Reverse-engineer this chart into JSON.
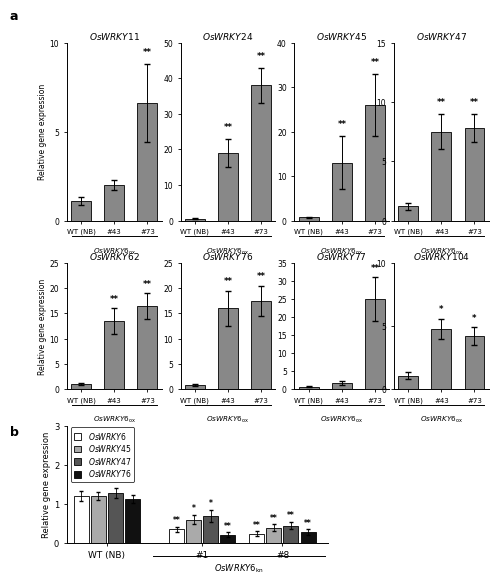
{
  "panel_a": {
    "subplots": [
      {
        "title": "OsWRKY11",
        "categories": [
          "WT (NB)",
          "#43",
          "#73"
        ],
        "values": [
          1.1,
          2.0,
          6.6
        ],
        "errors": [
          0.25,
          0.3,
          2.2
        ],
        "ylim": [
          0,
          10
        ],
        "yticks": [
          0,
          5,
          10
        ],
        "sig": [
          "",
          "",
          "**"
        ]
      },
      {
        "title": "OsWRKY24",
        "categories": [
          "WT (NB)",
          "#43",
          "#73"
        ],
        "values": [
          0.5,
          19.0,
          38.0
        ],
        "errors": [
          0.1,
          4.0,
          5.0
        ],
        "ylim": [
          0,
          50
        ],
        "yticks": [
          0,
          10,
          20,
          30,
          40,
          50
        ],
        "sig": [
          "",
          "**",
          "**"
        ]
      },
      {
        "title": "OsWRKY45",
        "categories": [
          "WT (NB)",
          "#43",
          "#73"
        ],
        "values": [
          0.7,
          13.0,
          26.0
        ],
        "errors": [
          0.1,
          6.0,
          7.0
        ],
        "ylim": [
          0,
          40
        ],
        "yticks": [
          0,
          10,
          20,
          30,
          40
        ],
        "sig": [
          "",
          "**",
          "**"
        ]
      },
      {
        "title": "OsWRKY47",
        "categories": [
          "WT (NB)",
          "#43",
          "#73"
        ],
        "values": [
          1.2,
          7.5,
          7.8
        ],
        "errors": [
          0.3,
          1.5,
          1.2
        ],
        "ylim": [
          0,
          15
        ],
        "yticks": [
          0,
          5,
          10,
          15
        ],
        "sig": [
          "",
          "**",
          "**"
        ]
      },
      {
        "title": "OsWRKY62",
        "categories": [
          "WT (NB)",
          "#43",
          "#73"
        ],
        "values": [
          1.1,
          13.5,
          16.5
        ],
        "errors": [
          0.2,
          2.5,
          2.5
        ],
        "ylim": [
          0,
          25
        ],
        "yticks": [
          0,
          5,
          10,
          15,
          20,
          25
        ],
        "sig": [
          "",
          "**",
          "**"
        ]
      },
      {
        "title": "OsWRKY76",
        "categories": [
          "WT (NB)",
          "#43",
          "#73"
        ],
        "values": [
          0.9,
          16.0,
          17.5
        ],
        "errors": [
          0.15,
          3.5,
          3.0
        ],
        "ylim": [
          0,
          25
        ],
        "yticks": [
          0,
          5,
          10,
          15,
          20,
          25
        ],
        "sig": [
          "",
          "**",
          "**"
        ]
      },
      {
        "title": "OsWRKY77",
        "categories": [
          "WT (NB)",
          "#43",
          "#73"
        ],
        "values": [
          0.8,
          1.8,
          25.0
        ],
        "errors": [
          0.1,
          0.5,
          6.0
        ],
        "ylim": [
          0,
          35
        ],
        "yticks": [
          0,
          5,
          10,
          15,
          20,
          25,
          30,
          35
        ],
        "sig": [
          "",
          "",
          "**"
        ]
      },
      {
        "title": "OsWRKY104",
        "categories": [
          "WT (NB)",
          "#43",
          "#73"
        ],
        "values": [
          1.1,
          4.8,
          4.2
        ],
        "errors": [
          0.25,
          0.8,
          0.7
        ],
        "ylim": [
          0,
          10
        ],
        "yticks": [
          0,
          5,
          10
        ],
        "sig": [
          "",
          "*",
          "*"
        ]
      }
    ]
  },
  "panel_b": {
    "groups": [
      "WT (NB)",
      "#1",
      "#8"
    ],
    "series": [
      {
        "label": "OsWRKY6",
        "color": "#ffffff",
        "edgecolor": "#000000",
        "values": [
          1.2,
          0.35,
          0.24
        ],
        "errors": [
          0.12,
          0.07,
          0.06
        ],
        "sig": [
          "",
          "**",
          "**"
        ]
      },
      {
        "label": "OsWRKY45",
        "color": "#aaaaaa",
        "edgecolor": "#000000",
        "values": [
          1.2,
          0.6,
          0.4
        ],
        "errors": [
          0.1,
          0.12,
          0.08
        ],
        "sig": [
          "",
          "*",
          "**"
        ]
      },
      {
        "label": "OsWRKY47",
        "color": "#555555",
        "edgecolor": "#000000",
        "values": [
          1.28,
          0.7,
          0.45
        ],
        "errors": [
          0.12,
          0.15,
          0.1
        ],
        "sig": [
          "",
          "*",
          "**"
        ]
      },
      {
        "label": "OsWRKY76",
        "color": "#111111",
        "edgecolor": "#000000",
        "values": [
          1.12,
          0.22,
          0.28
        ],
        "errors": [
          0.1,
          0.06,
          0.07
        ],
        "sig": [
          "",
          "**",
          "**"
        ]
      }
    ],
    "ylim": [
      0,
      3
    ],
    "yticks": [
      0,
      1,
      2,
      3
    ]
  },
  "bar_color": "#888888",
  "bar_edgecolor": "#000000",
  "ylabel": "Relative gene expression"
}
